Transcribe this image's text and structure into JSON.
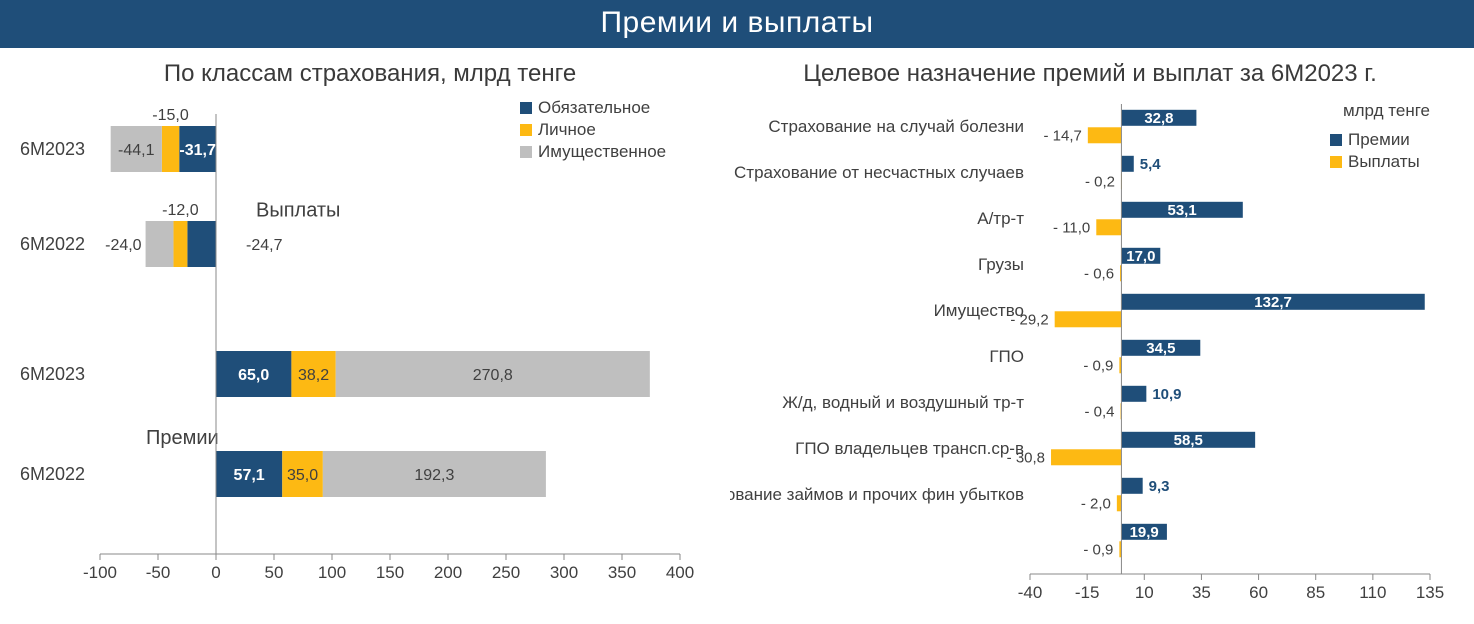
{
  "header": {
    "title": "Премии и выплаты"
  },
  "colors": {
    "header_bg": "#1f4e79",
    "navy": "#1f4e79",
    "yellow": "#fdb913",
    "gray": "#bfbfbf",
    "axis": "#888888",
    "tick": "#404040"
  },
  "left": {
    "title": "По классам страхования, млрд тенге",
    "legend": [
      {
        "label": "Обязательное",
        "color": "#1f4e79"
      },
      {
        "label": "Личное",
        "color": "#fdb913"
      },
      {
        "label": "Имущественное",
        "color": "#bfbfbf"
      }
    ],
    "group_labels": {
      "top": "Выплаты",
      "bottom": "Премии"
    },
    "x": {
      "min": -100,
      "max": 400,
      "ticks": [
        -100,
        -50,
        0,
        50,
        100,
        150,
        200,
        250,
        300,
        350,
        400
      ]
    },
    "rows": [
      {
        "cat": "6М2023",
        "seg": [
          {
            "v": -44.1,
            "lbl": "-44,1",
            "c": "#bfbfbf",
            "tpos": "in"
          },
          {
            "v": -15.0,
            "lbl": "-15,0",
            "c": "#fdb913",
            "tpos": "above"
          },
          {
            "v": -31.7,
            "lbl": "-31,7",
            "c": "#1f4e79",
            "tpos": "in"
          }
        ],
        "order": "neg-stack"
      },
      {
        "cat": "6М2022",
        "seg": [
          {
            "v": -24.0,
            "lbl": "-24,0",
            "c": "#bfbfbf",
            "tpos": "left"
          },
          {
            "v": -12.0,
            "lbl": "-12,0",
            "c": "#fdb913",
            "tpos": "above"
          },
          {
            "v": -24.7,
            "lbl": "-24,7",
            "c": "#1f4e79",
            "tpos": "right"
          }
        ],
        "order": "neg-stack"
      },
      {
        "cat": "6М2023",
        "seg": [
          {
            "v": 65.0,
            "lbl": "65,0",
            "c": "#1f4e79",
            "tpos": "in"
          },
          {
            "v": 38.2,
            "lbl": "38,2",
            "c": "#fdb913",
            "tpos": "in"
          },
          {
            "v": 270.8,
            "lbl": "270,8",
            "c": "#bfbfbf",
            "tpos": "in"
          }
        ],
        "order": "pos-stack"
      },
      {
        "cat": "6М2022",
        "seg": [
          {
            "v": 57.1,
            "lbl": "57,1",
            "c": "#1f4e79",
            "tpos": "in"
          },
          {
            "v": 35.0,
            "lbl": "35,0",
            "c": "#fdb913",
            "tpos": "in"
          },
          {
            "v": 192.3,
            "lbl": "192,3",
            "c": "#bfbfbf",
            "tpos": "in"
          }
        ],
        "order": "pos-stack"
      }
    ]
  },
  "right": {
    "title": "Целевое назначение премий и выплат за 6М2023 г.",
    "unit": "млрд тенге",
    "legend": [
      {
        "label": "Премии",
        "color": "#1f4e79"
      },
      {
        "label": "Выплаты",
        "color": "#fdb913"
      }
    ],
    "x": {
      "min": -40,
      "max": 135,
      "ticks": [
        -40,
        -15,
        10,
        35,
        60,
        85,
        110,
        135
      ]
    },
    "rows": [
      {
        "cat": "Страхование на случай болезни",
        "prem": 32.8,
        "prem_lbl": "32,8",
        "pay": -14.7,
        "pay_lbl": "- 14,7"
      },
      {
        "cat": "Страхование от несчастных случаев",
        "prem": 5.4,
        "prem_lbl": "5,4",
        "pay": -0.2,
        "pay_lbl": "- 0,2"
      },
      {
        "cat": "А/тр-т",
        "prem": 53.1,
        "prem_lbl": "53,1",
        "pay": -11.0,
        "pay_lbl": "- 11,0"
      },
      {
        "cat": "Грузы",
        "prem": 17.0,
        "prem_lbl": "17,0",
        "pay": -0.6,
        "pay_lbl": "- 0,6"
      },
      {
        "cat": "Имущество",
        "prem": 132.7,
        "prem_lbl": "132,7",
        "pay": -29.2,
        "pay_lbl": "- 29,2"
      },
      {
        "cat": "ГПО",
        "prem": 34.5,
        "prem_lbl": "34,5",
        "pay": -0.9,
        "pay_lbl": "- 0,9"
      },
      {
        "cat": "Ж/д, водный и воздушный тр-т",
        "prem": 10.9,
        "prem_lbl": "10,9",
        "pay": -0.4,
        "pay_lbl": "- 0,4"
      },
      {
        "cat": "ГПО владельцев трансп.ср-в",
        "prem": 58.5,
        "prem_lbl": "58,5",
        "pay": -30.8,
        "pay_lbl": "- 30,8"
      },
      {
        "cat": "Страхование займов и прочих фин убытков",
        "prem": 9.3,
        "prem_lbl": "9,3",
        "pay": -2.0,
        "pay_lbl": "- 2,0"
      },
      {
        "cat": "",
        "prem": 19.9,
        "prem_lbl": "19,9",
        "pay": -0.9,
        "pay_lbl": "- 0,9"
      }
    ]
  }
}
